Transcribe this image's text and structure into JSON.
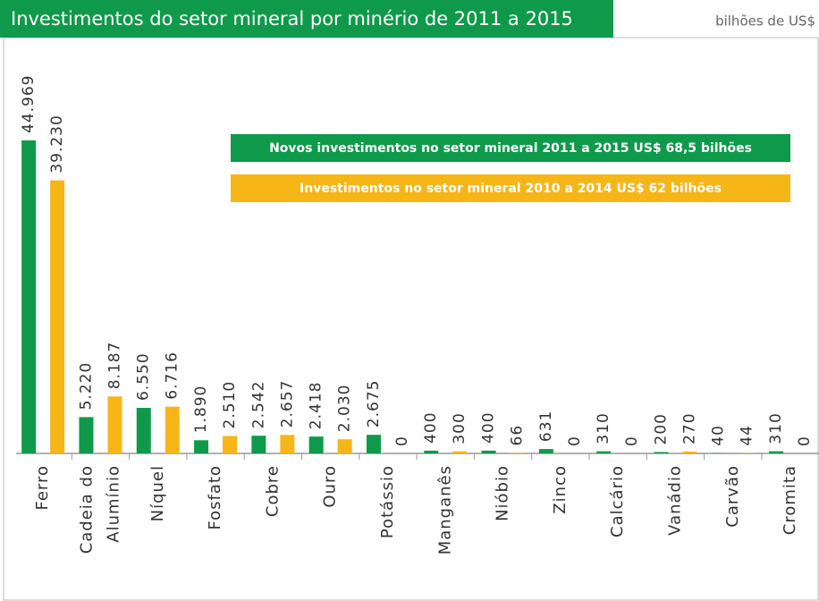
{
  "chart_data": {
    "type": "bar",
    "title": "Investimentos do setor mineral por minério de 2011 a 2015",
    "unit_label": "bilhões de US$",
    "categories": [
      "Ferro",
      [
        "Cadeia do",
        "Alumínio"
      ],
      "Níquel",
      "Fosfato",
      "Cobre",
      "Ouro",
      "Potássio",
      "Manganês",
      "Nióbio",
      "Zinco",
      "Calcário",
      "Vanádio",
      "Carvão",
      "Cromita"
    ],
    "series": [
      {
        "name": "Novos investimentos no setor mineral 2011 a 2015 US$ 68,5 bilhões",
        "color": "#0e9a4a",
        "values": [
          44969,
          5220,
          6550,
          1890,
          2542,
          2418,
          2675,
          400,
          400,
          631,
          310,
          200,
          40,
          310
        ],
        "value_labels": [
          "44.969",
          "5.220",
          "6.550",
          "1.890",
          "2.542",
          "2.418",
          "2.675",
          "400",
          "400",
          "631",
          "310",
          "200",
          "40",
          "310"
        ]
      },
      {
        "name": "Investimentos no setor mineral 2010 a 2014 US$ 62 bilhões",
        "color": "#f7b618",
        "values": [
          39230,
          8187,
          6716,
          2510,
          2657,
          2030,
          0,
          300,
          66,
          0,
          0,
          270,
          44,
          0
        ],
        "value_labels": [
          "39.230",
          "8.187",
          "6.716",
          "2.510",
          "2.657",
          "2.030",
          "0",
          "300",
          "66",
          "0",
          "0",
          "270",
          "44",
          "0"
        ]
      }
    ]
  }
}
